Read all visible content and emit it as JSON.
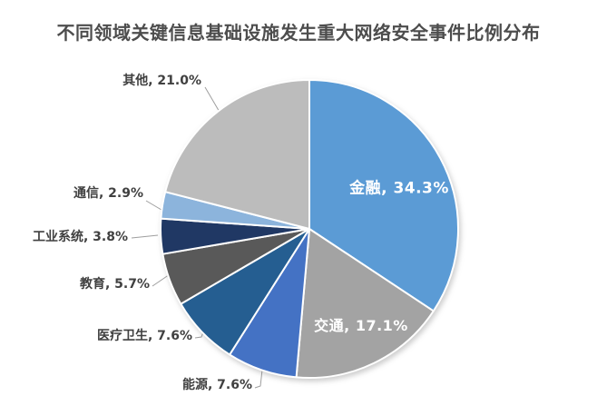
{
  "page": {
    "background": "#FFFFFF"
  },
  "chart_data": {
    "type": "pie",
    "title": "不同领域关键信息基础设施发生重大网络安全事件比例分布",
    "unit": "%",
    "direction": "clockwise",
    "start_angle_deg": 0,
    "legend_position": "none",
    "grid": false,
    "label_format": "label, value%",
    "slice_border_color": "#FFFFFF",
    "leader_line_color": "#9E9E9E",
    "outside_label_color": "#404040",
    "title_color": "#4D4D4D",
    "segments": [
      {
        "name": "finance",
        "label": "金融",
        "value": 34.3,
        "color": "#5B9BD5",
        "label_placement": "inside",
        "label_color": "#FFFFFF"
      },
      {
        "name": "transport",
        "label": "交通",
        "value": 17.1,
        "color": "#A3A3A3",
        "label_placement": "inside",
        "label_color": "#FFFFFF"
      },
      {
        "name": "energy",
        "label": "能源",
        "value": 7.6,
        "color": "#4472C4",
        "label_placement": "outside",
        "label_color": "#404040"
      },
      {
        "name": "healthcare",
        "label": "医疗卫生",
        "value": 7.6,
        "color": "#255E91",
        "label_placement": "outside",
        "label_color": "#404040"
      },
      {
        "name": "education",
        "label": "教育",
        "value": 5.7,
        "color": "#595959",
        "label_placement": "outside",
        "label_color": "#404040"
      },
      {
        "name": "industrial-systems",
        "label": "工业系统",
        "value": 3.8,
        "color": "#203864",
        "label_placement": "outside",
        "label_color": "#404040"
      },
      {
        "name": "communications",
        "label": "通信",
        "value": 2.9,
        "color": "#8CB4DC",
        "label_placement": "outside",
        "label_color": "#404040"
      },
      {
        "name": "other",
        "label": "其他",
        "value": 21.0,
        "color": "#BCBCBC",
        "label_placement": "outside",
        "label_color": "#404040"
      }
    ]
  }
}
